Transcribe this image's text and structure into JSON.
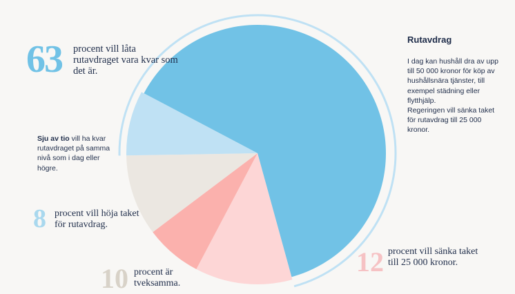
{
  "chart_data": {
    "type": "pie",
    "slices": [
      {
        "label": "procent vill låta rutavdraget vara kvar som det är.",
        "value": 63,
        "color": "#71c2e6"
      },
      {
        "label": "procent vill sänka taket till 25 000 kronor.",
        "value": 12,
        "color": "#fdd6d6"
      },
      {
        "label": "",
        "value": 7,
        "color": "#fbb1ad"
      },
      {
        "label": "procent är tveksamma.",
        "value": 10,
        "color": "#ebe7e1"
      },
      {
        "label": "procent vill höja taket för rutavdrag.",
        "value": 8,
        "color": "#bfe1f4"
      }
    ],
    "ring_color": "#bfe1f4"
  },
  "labels": {
    "n63": "63",
    "t63": "procent vill låta rutavdraget vara kvar som det är.",
    "n8": "8",
    "t8": "procent vill höja taket för rutavdrag.",
    "n10": "10",
    "t10": "procent är tveksamma.",
    "n12": "12",
    "t12": "procent vill sänka taket till 25 000 kronor.",
    "sju_bold": "Sju av tio",
    "sju_rest": " vill ha kvar rutavdraget på samma nivå som i dag eller högre."
  },
  "sidebar": {
    "title": "Rutavdrag",
    "p1": "I dag kan hushåll dra av upp till 50 000 kronor för köp av hushållsnära tjänster, till exempel städning eller flytthjälp.",
    "p2": "Regeringen vill sänka taket för rutavdrag till 25 000 kronor."
  }
}
